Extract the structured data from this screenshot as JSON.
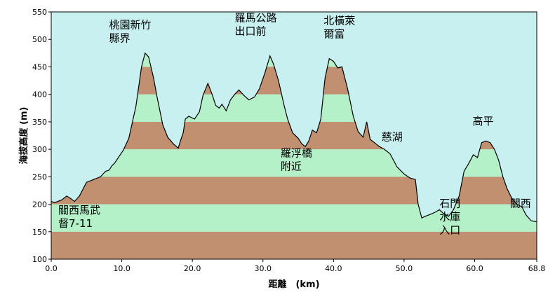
{
  "chart_data": {
    "type": "area",
    "xlabel": "距離　(km)",
    "ylabel": "海拔高度 (m)",
    "xlim": [
      0,
      68.8
    ],
    "ylim": [
      100,
      550
    ],
    "x_ticks": [
      "0.0",
      "10.0",
      "20.0",
      "30.0",
      "40.0",
      "50.0",
      "60.0",
      "68.8"
    ],
    "y_ticks": [
      "100",
      "150",
      "200",
      "250",
      "300",
      "350",
      "400",
      "450",
      "500",
      "550"
    ],
    "band_step": 50,
    "band_colors": [
      "#c09070",
      "#b4f0c8"
    ],
    "sky_color": "#c8f0f0",
    "line_color": "#000000",
    "series": [
      {
        "x": [
          0,
          0.5,
          1.5,
          2.2,
          2.8,
          3.3,
          4.0,
          5.0,
          6.0,
          7.0,
          7.7,
          8.2,
          8.6,
          9.0,
          9.5,
          10.2,
          11.0,
          12.0,
          12.8,
          13.3,
          13.8,
          14.5,
          15.0,
          15.8,
          16.5,
          17.3,
          18.0,
          18.3,
          18.7,
          19.0,
          19.5,
          20.3,
          21.0,
          21.5,
          22.2,
          22.8,
          23.3,
          23.8,
          24.2,
          24.8,
          25.4,
          26.0,
          26.6,
          27.3,
          28.0,
          28.8,
          29.5,
          30.3,
          31.0,
          31.5,
          32.2,
          33.0,
          33.5,
          34.2,
          35.0,
          35.5,
          36.0,
          36.5,
          37.0,
          37.6,
          38.2,
          38.8,
          39.4,
          40.0,
          40.6,
          41.2,
          42.0,
          42.8,
          43.5,
          44.2,
          44.7,
          45.2,
          45.8,
          46.5,
          47.2,
          48.0,
          49.0,
          50.0,
          50.8,
          51.6,
          52.0,
          52.5,
          53.0,
          53.8,
          54.5,
          55.0,
          55.6,
          56.3,
          57.0,
          57.8,
          58.5,
          59.2,
          59.8,
          60.4,
          61.0,
          61.6,
          62.2,
          62.8,
          63.4,
          64.0,
          64.6,
          65.3,
          66.0,
          66.7,
          67.3,
          68.0,
          68.8
        ],
        "y": [
          205,
          203,
          208,
          215,
          210,
          205,
          215,
          240,
          245,
          250,
          260,
          262,
          270,
          275,
          285,
          298,
          320,
          378,
          450,
          475,
          468,
          430,
          395,
          345,
          322,
          310,
          302,
          315,
          330,
          355,
          360,
          355,
          368,
          398,
          420,
          400,
          380,
          375,
          382,
          370,
          390,
          400,
          408,
          398,
          390,
          395,
          410,
          440,
          470,
          455,
          425,
          380,
          355,
          330,
          320,
          310,
          305,
          315,
          335,
          330,
          355,
          430,
          465,
          460,
          448,
          450,
          410,
          360,
          332,
          322,
          350,
          318,
          312,
          305,
          300,
          292,
          268,
          255,
          248,
          245,
          200,
          175,
          178,
          182,
          186,
          190,
          183,
          178,
          190,
          215,
          260,
          275,
          290,
          285,
          312,
          315,
          312,
          300,
          280,
          250,
          228,
          210,
          200,
          195,
          180,
          170,
          168
        ]
      }
    ],
    "annotations": [
      {
        "lines": [
          "桃園新竹",
          "縣界"
        ],
        "x": 8.2,
        "y": 520
      },
      {
        "lines": [
          "羅馬公路",
          "出口前"
        ],
        "x": 26.0,
        "y": 533
      },
      {
        "lines": [
          "北橫萊",
          "爾富"
        ],
        "x": 38.6,
        "y": 528
      },
      {
        "lines": [
          "慈湖"
        ],
        "x": 46.8,
        "y": 316
      },
      {
        "lines": [
          "羅浮橋",
          "附近"
        ],
        "x": 32.5,
        "y": 287
      },
      {
        "lines": [
          "高平"
        ],
        "x": 59.7,
        "y": 345
      },
      {
        "lines": [
          "關西馬武",
          "督7-11"
        ],
        "x": 1.0,
        "y": 183
      },
      {
        "lines": [
          "石門",
          "水庫",
          "入口"
        ],
        "x": 55.0,
        "y": 195
      },
      {
        "lines": [
          "關西"
        ],
        "x": 65.0,
        "y": 195
      }
    ]
  }
}
